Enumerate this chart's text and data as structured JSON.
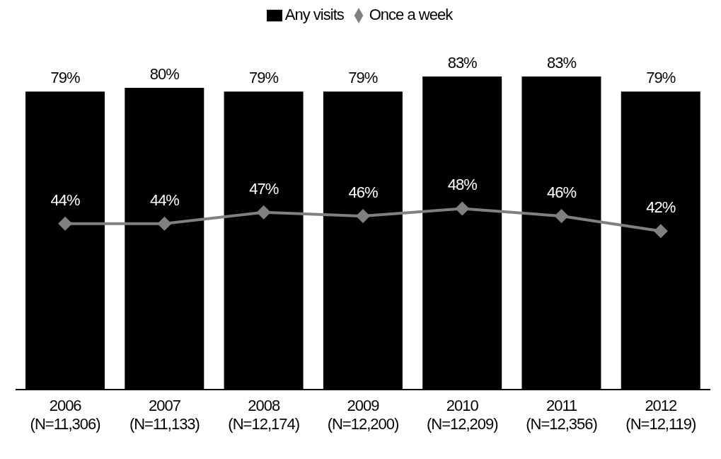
{
  "chart_data": {
    "type": "bar",
    "categories": [
      "2006\n(N=11,306)",
      "2007\n(N=11,133)",
      "2008\n(N=12,174)",
      "2009\n(N=12,200)",
      "2010\n(N=12,209)",
      "2011\n(N=12,356)",
      "2012\n(N=12,119)"
    ],
    "series": [
      {
        "name": "Any visits",
        "color": "#000000",
        "values": [
          79,
          80,
          79,
          79,
          83,
          83,
          79
        ],
        "value_labels": [
          "79%",
          "80%",
          "79%",
          "79%",
          "83%",
          "83%",
          "79%"
        ]
      },
      {
        "name": "Once a week",
        "type": "line",
        "color": "#808080",
        "marker": "diamond",
        "values": [
          44,
          44,
          47,
          46,
          48,
          46,
          42
        ],
        "value_labels": [
          "44%",
          "44%",
          "47%",
          "46%",
          "48%",
          "46%",
          "42%"
        ]
      }
    ],
    "legend": "top",
    "grid": false
  }
}
